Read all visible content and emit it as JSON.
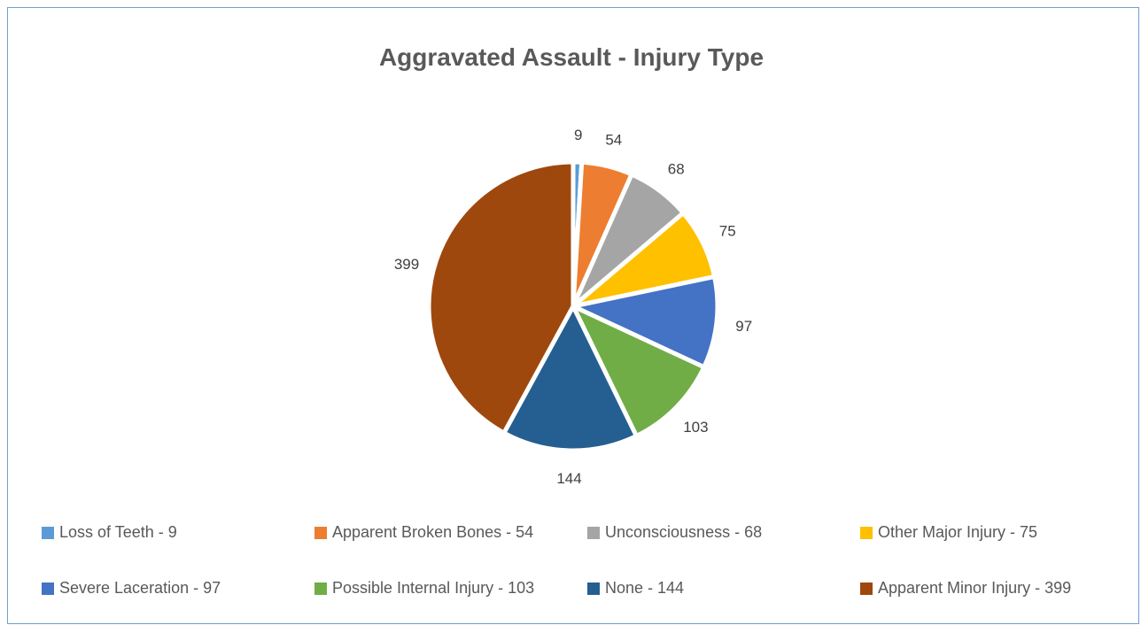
{
  "chart_data": {
    "type": "pie",
    "title": "Aggravated Assault - Injury Type",
    "legend_position": "bottom",
    "slices": [
      {
        "label": "Loss of Teeth",
        "value": 9,
        "data_label": "9",
        "legend": "Loss of Teeth - 9",
        "color": "#5b9bd5"
      },
      {
        "label": "Apparent Broken Bones",
        "value": 54,
        "data_label": "54",
        "legend": "Apparent Broken Bones - 54",
        "color": "#ed7d31"
      },
      {
        "label": "Unconsciousness",
        "value": 68,
        "data_label": "68",
        "legend": "Unconsciousness - 68",
        "color": "#a5a5a5"
      },
      {
        "label": "Other Major Injury",
        "value": 75,
        "data_label": "75",
        "legend": "Other Major Injury - 75",
        "color": "#ffc000"
      },
      {
        "label": "Severe Laceration",
        "value": 97,
        "data_label": "97",
        "legend": "Severe Laceration - 97",
        "color": "#4472c4"
      },
      {
        "label": "Possible Internal Injury",
        "value": 103,
        "data_label": "103",
        "legend": "Possible Internal Injury - 103",
        "color": "#70ad47"
      },
      {
        "label": "None",
        "value": 144,
        "data_label": "144",
        "legend": "None - 144",
        "color": "#255e91"
      },
      {
        "label": "Apparent Minor Injury",
        "value": 399,
        "data_label": "399",
        "legend": "Apparent Minor Injury - 399",
        "color": "#9e480e"
      }
    ]
  }
}
